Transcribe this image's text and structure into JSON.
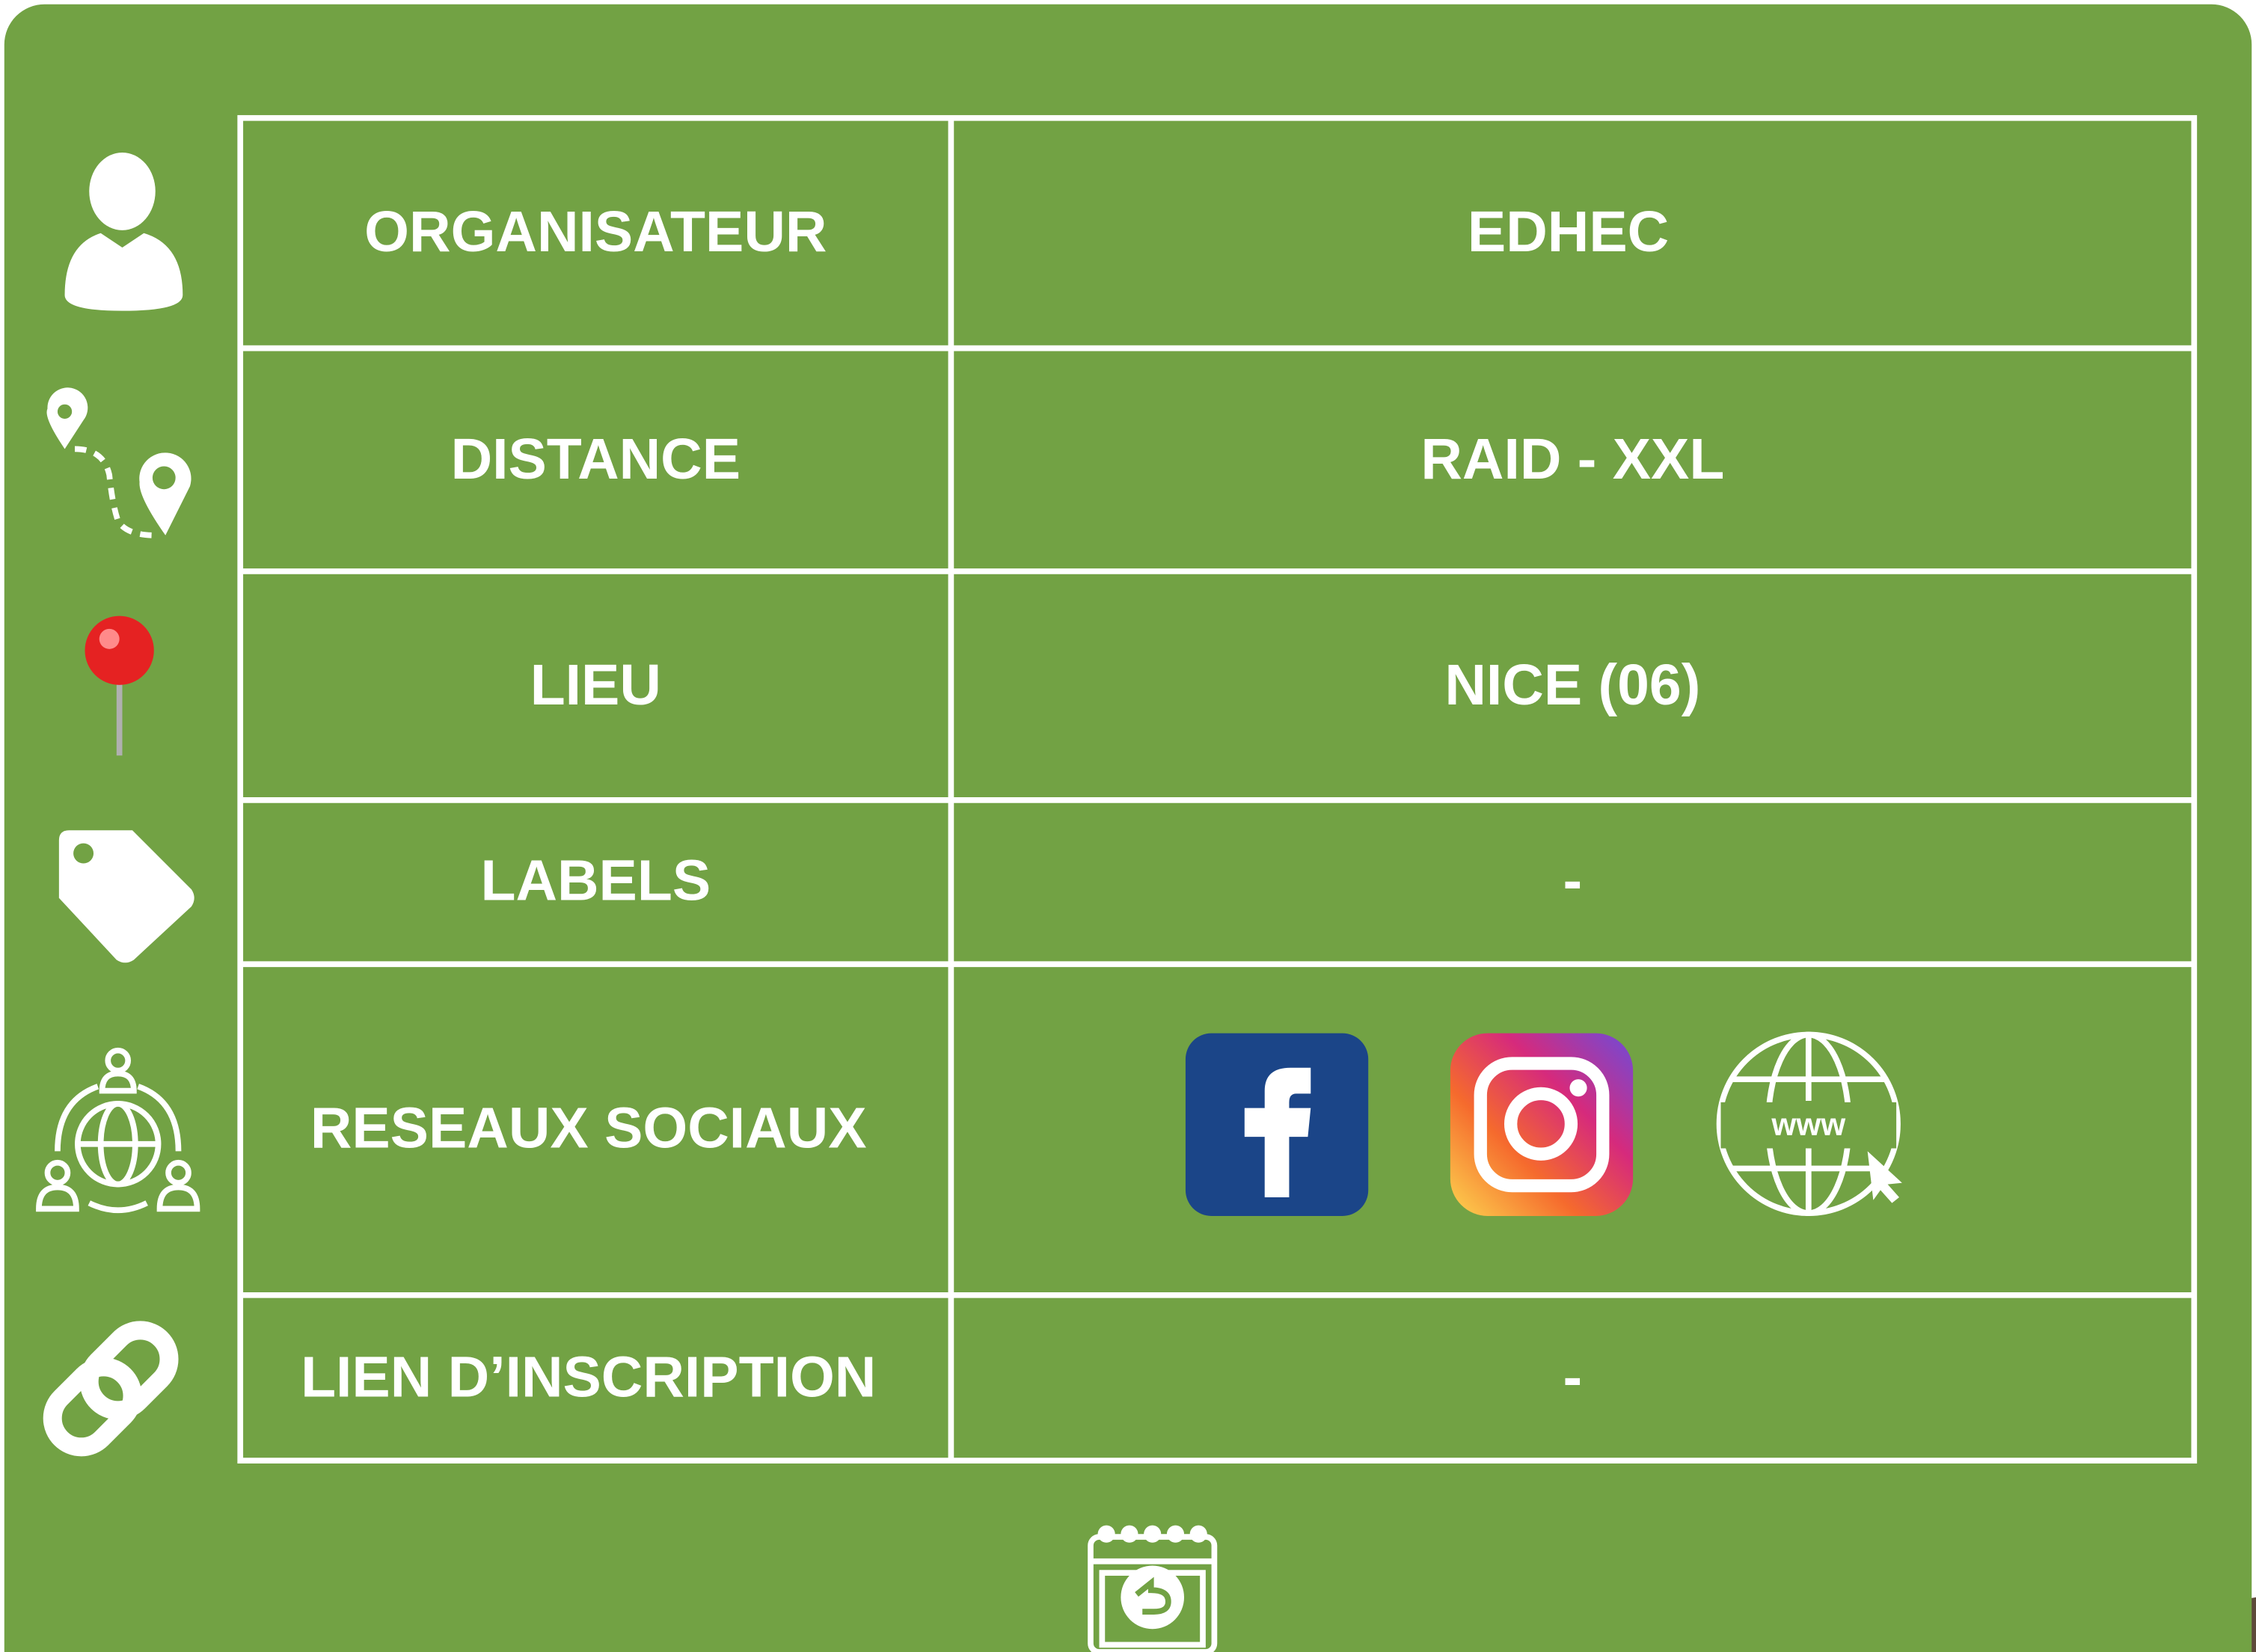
{
  "table": {
    "rows": [
      {
        "label": "ORGANISATEUR",
        "value": "EDHEC"
      },
      {
        "label": "DISTANCE",
        "value": "RAID - XXL"
      },
      {
        "label": "LIEU",
        "value": "NICE (06)"
      },
      {
        "label": "LABELS",
        "value": "-"
      },
      {
        "label": "RESEAUX SOCIAUX",
        "icon_text": "www"
      },
      {
        "label": "LIEN D’INSCRIPTION",
        "value": "-"
      }
    ]
  }
}
